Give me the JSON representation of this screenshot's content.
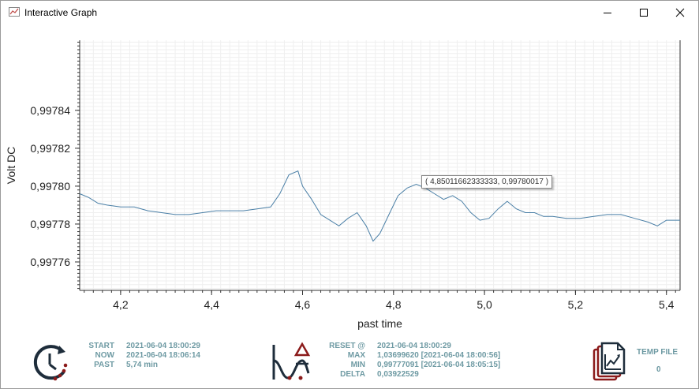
{
  "window": {
    "title": "Interactive Graph",
    "icons": {
      "app": "graph-app-icon",
      "minimize": "minimize-icon",
      "maximize": "maximize-icon",
      "close": "close-icon"
    }
  },
  "chart_data": {
    "type": "line",
    "xlabel": "past time",
    "ylabel": "Volt DC",
    "xlim": [
      4.11,
      5.43
    ],
    "ylim": [
      0.997745,
      0.997877
    ],
    "x_ticks": [
      4.2,
      4.4,
      4.6,
      4.8,
      5.0,
      5.2,
      5.4
    ],
    "x_tick_labels": [
      "4,2",
      "4,4",
      "4,6",
      "4,8",
      "5,0",
      "5,2",
      "5,4"
    ],
    "y_ticks": [
      0.99776,
      0.99778,
      0.9978,
      0.99782,
      0.99784
    ],
    "y_tick_labels": [
      "0,99776",
      "0,99778",
      "0,99780",
      "0,99782",
      "0,99784"
    ],
    "grid": true,
    "line_color": "#4a7fa6",
    "series": [
      {
        "x": [
          4.11,
          4.13,
          4.15,
          4.17,
          4.2,
          4.23,
          4.26,
          4.29,
          4.32,
          4.35,
          4.38,
          4.41,
          4.44,
          4.47,
          4.5,
          4.53,
          4.55,
          4.57,
          4.59,
          4.6,
          4.62,
          4.64,
          4.66,
          4.68,
          4.7,
          4.72,
          4.74,
          4.755,
          4.77,
          4.79,
          4.81,
          4.83,
          4.85,
          4.87,
          4.89,
          4.91,
          4.93,
          4.95,
          4.97,
          4.99,
          5.01,
          5.03,
          5.05,
          5.07,
          5.09,
          5.11,
          5.13,
          5.15,
          5.18,
          5.21,
          5.24,
          5.27,
          5.3,
          5.33,
          5.36,
          5.38,
          5.4,
          5.43
        ],
        "values": [
          0.997796,
          0.997794,
          0.997791,
          0.99779,
          0.997789,
          0.997789,
          0.997787,
          0.997786,
          0.997785,
          0.997785,
          0.997786,
          0.997787,
          0.997787,
          0.997787,
          0.997788,
          0.997789,
          0.997796,
          0.997806,
          0.997808,
          0.9978,
          0.997793,
          0.997785,
          0.997782,
          0.997779,
          0.997783,
          0.997786,
          0.997779,
          0.997771,
          0.997775,
          0.997785,
          0.997795,
          0.997799,
          0.997801,
          0.997799,
          0.997796,
          0.997793,
          0.997795,
          0.997792,
          0.997786,
          0.997782,
          0.997783,
          0.997788,
          0.997792,
          0.997788,
          0.997786,
          0.997786,
          0.997784,
          0.997784,
          0.997783,
          0.997783,
          0.997784,
          0.997785,
          0.997785,
          0.997783,
          0.997781,
          0.997779,
          0.997782,
          0.997782
        ]
      }
    ]
  },
  "tooltip": {
    "text": "( 4,85011662333333, 0,99780017 )"
  },
  "footer": {
    "time": {
      "icon": "history-clock-icon",
      "start_label": "START",
      "start_value": "2021-06-04 18:00:29",
      "now_label": "NOW",
      "now_value": "2021-06-04 18:06:14",
      "past_label": "PAST",
      "past_value": "5,74 min"
    },
    "stats": {
      "icon": "delta-wave-icon",
      "reset_label": "RESET @",
      "reset_value": "2021-06-04 18:00:29",
      "max_label": "MAX",
      "max_value": "1,03699620  [2021-06-04 18:00:56]",
      "min_label": "MIN",
      "min_value": "0,99777091  [2021-06-04 18:05:15]",
      "delta_label": "DELTA",
      "delta_value": "0,03922529"
    },
    "temp": {
      "icon": "temp-file-chart-icon",
      "label": "TEMP FILE",
      "value": "0"
    }
  }
}
